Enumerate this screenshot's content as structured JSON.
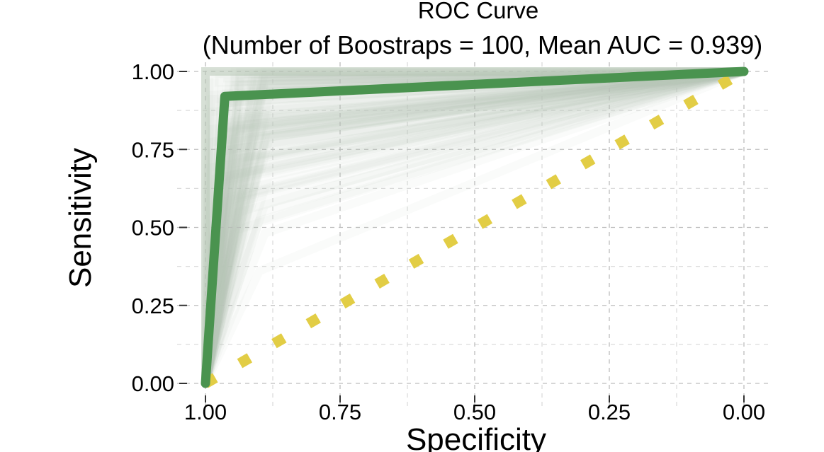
{
  "chart_data": {
    "type": "line",
    "title": "ROC Curve",
    "subtitle": "(Number of Boostraps = 100, Mean AUC = 0.939)",
    "xlabel": "Specificity",
    "ylabel": "Sensitivity",
    "x_reversed": true,
    "xlim": [
      1.0,
      0.0
    ],
    "ylim": [
      0.0,
      1.0
    ],
    "x_ticks": [
      "1.00",
      "0.75",
      "0.50",
      "0.25",
      "0.00"
    ],
    "y_ticks": [
      "0.00",
      "0.25",
      "0.50",
      "0.75",
      "1.00"
    ],
    "grid": true,
    "grid_style": "dashed",
    "series": [
      {
        "role": "mean",
        "color": "#4a934f",
        "points": [
          {
            "specificity": 1.0,
            "sensitivity": 0.0
          },
          {
            "specificity": 0.964,
            "sensitivity": 0.92
          },
          {
            "specificity": 0.0,
            "sensitivity": 1.0
          }
        ]
      },
      {
        "role": "chance",
        "color": "#e2cd45",
        "points": [
          {
            "specificity": 1.0,
            "sensitivity": 0.0
          },
          {
            "specificity": 0.0,
            "sensitivity": 1.0
          }
        ]
      }
    ],
    "bootstrap_count": 100,
    "bootstrap_color": "#b6c6b4"
  }
}
